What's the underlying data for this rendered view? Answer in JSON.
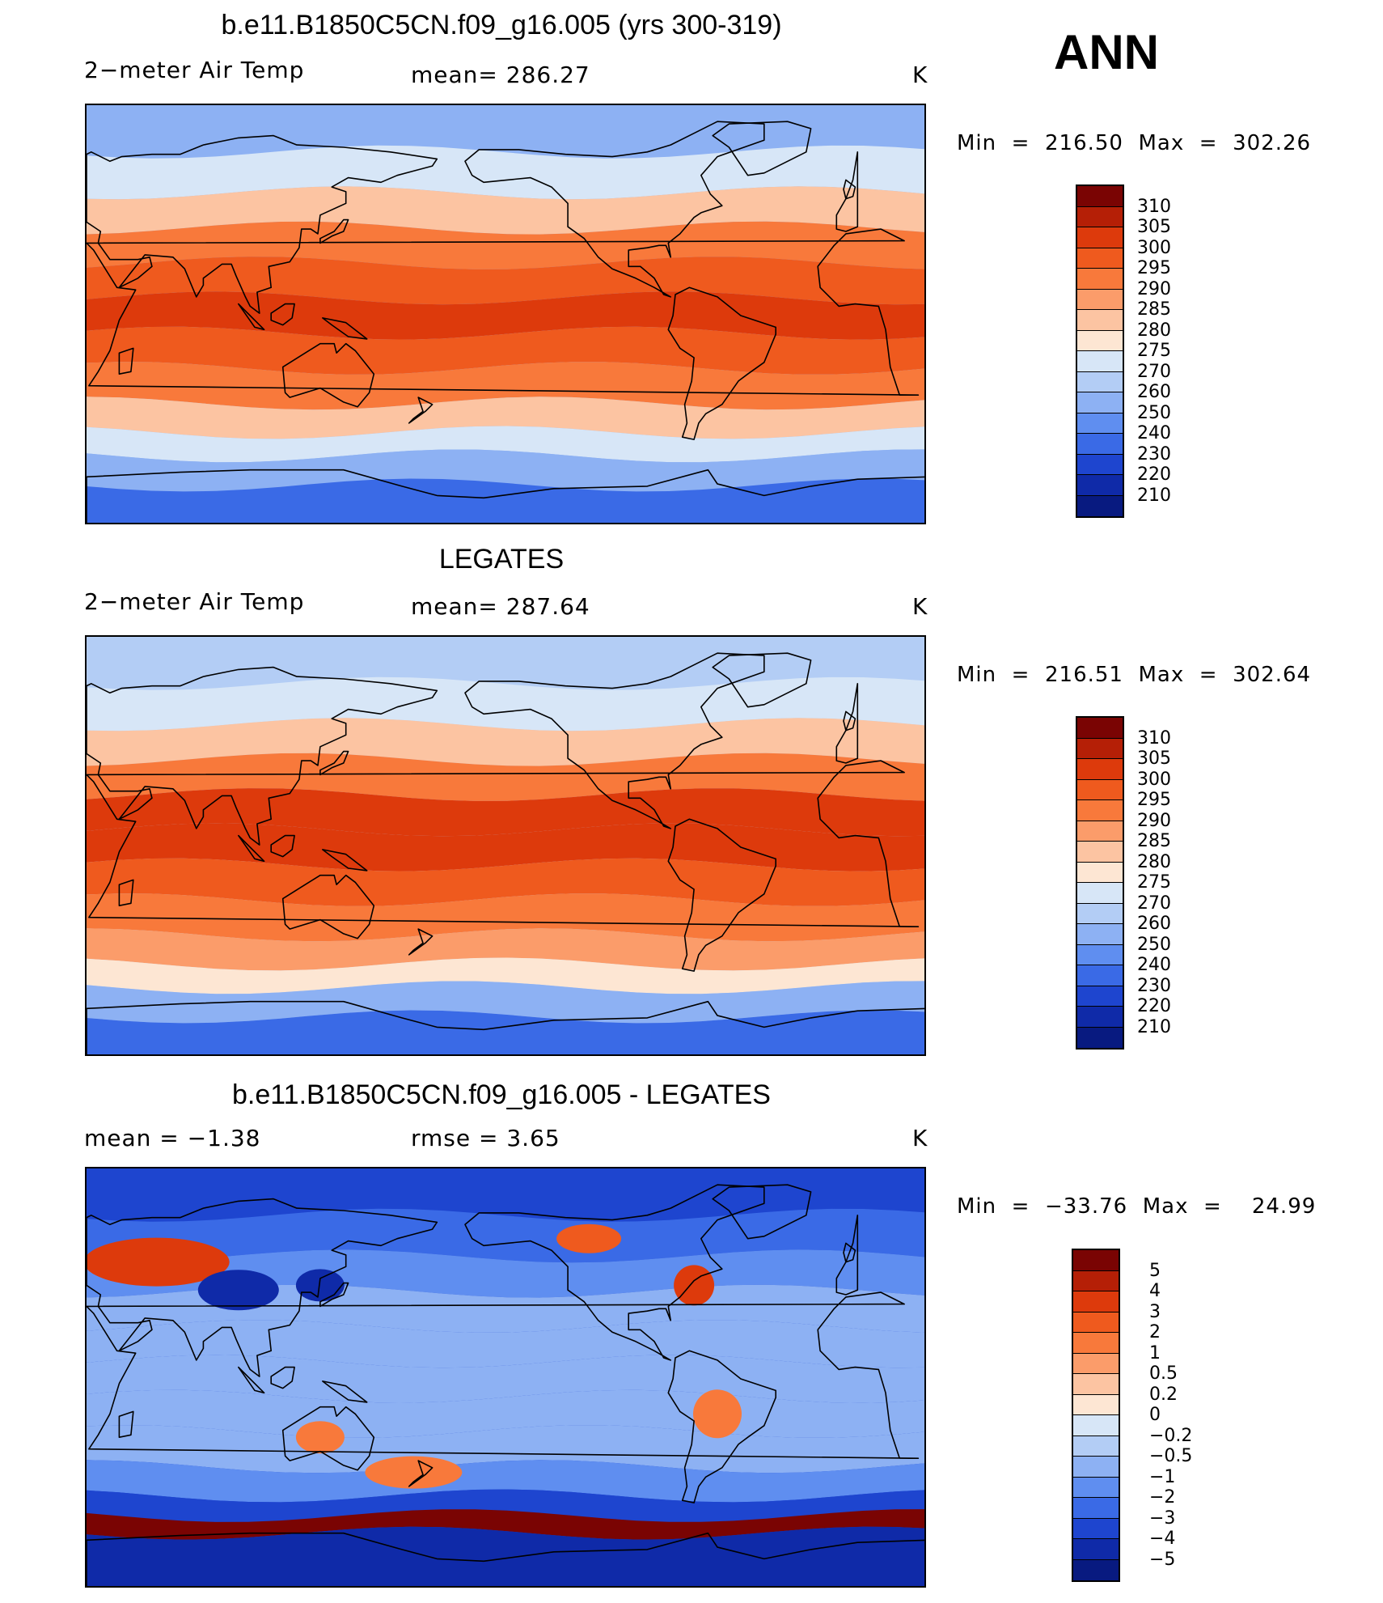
{
  "season": "ANN",
  "panels": [
    {
      "title": "b.e11.B1850C5CN.f09_g16.005 (yrs 300-319)",
      "left_label": "2−meter Air Temp",
      "center_label": "mean=  286.27",
      "units": "K",
      "minmax": "Min  =  216.50  Max  =  302.26"
    },
    {
      "title": "LEGATES",
      "left_label": "2−meter Air Temp",
      "center_label": "mean=  287.64",
      "units": "K",
      "minmax": "Min  =  216.51  Max  =  302.64"
    },
    {
      "title": "b.e11.B1850C5CN.f09_g16.005 - LEGATES",
      "left_label": "mean  =    −1.38",
      "center_label": "rmse  =     3.65",
      "units": "K",
      "minmax": "Min  =  −33.76  Max  =    24.99"
    }
  ],
  "colorbars": {
    "abs_levels": [
      "310",
      "305",
      "300",
      "295",
      "290",
      "285",
      "280",
      "275",
      "270",
      "260",
      "250",
      "240",
      "230",
      "220",
      "210"
    ],
    "abs_colors": [
      "#7a0403",
      "#b51f06",
      "#dd3a0c",
      "#ef5a1e",
      "#f8793b",
      "#fb9c6a",
      "#fcc4a2",
      "#fde6d3",
      "#d7e6f7",
      "#b3cdf5",
      "#8db1f3",
      "#5f8ef0",
      "#3a6ae6",
      "#1e45cf",
      "#0f2aa8",
      "#081a80"
    ],
    "diff_levels": [
      "5",
      "4",
      "3",
      "2",
      "1",
      "0.5",
      "0.2",
      "0",
      "−0.2",
      "−0.5",
      "−1",
      "−2",
      "−3",
      "−4",
      "−5"
    ],
    "diff_colors": [
      "#7a0403",
      "#b51f06",
      "#dd3a0c",
      "#ef5a1e",
      "#f8793b",
      "#fb9c6a",
      "#fcc4a2",
      "#fde6d3",
      "#d7e6f7",
      "#b3cdf5",
      "#8db1f3",
      "#5f8ef0",
      "#3a6ae6",
      "#1e45cf",
      "#0f2aa8",
      "#081a80"
    ]
  },
  "chart_data": [
    {
      "type": "heatmap",
      "title": "b.e11.B1850C5CN.f09_g16.005 (yrs 300-319)",
      "variable": "2−meter Air Temp",
      "units": "K",
      "mean": 286.27,
      "min": 216.5,
      "max": 302.26,
      "contour_levels": [
        210,
        220,
        230,
        240,
        250,
        260,
        270,
        275,
        280,
        285,
        290,
        295,
        300,
        305,
        310
      ],
      "zonal_bands": [
        {
          "lat": 80,
          "level": 250
        },
        {
          "lat": 60,
          "level": 270
        },
        {
          "lat": 45,
          "level": 280
        },
        {
          "lat": 30,
          "level": 290
        },
        {
          "lat": 15,
          "level": 295
        },
        {
          "lat": 0,
          "level": 300
        },
        {
          "lat": -15,
          "level": 295
        },
        {
          "lat": -30,
          "level": 290
        },
        {
          "lat": -45,
          "level": 280
        },
        {
          "lat": -55,
          "level": 270
        },
        {
          "lat": -65,
          "level": 250
        },
        {
          "lat": -80,
          "level": 230
        }
      ]
    },
    {
      "type": "heatmap",
      "title": "LEGATES",
      "variable": "2−meter Air Temp",
      "units": "K",
      "mean": 287.64,
      "min": 216.51,
      "max": 302.64,
      "contour_levels": [
        210,
        220,
        230,
        240,
        250,
        260,
        270,
        275,
        280,
        285,
        290,
        295,
        300,
        305,
        310
      ],
      "zonal_bands": [
        {
          "lat": 80,
          "level": 260
        },
        {
          "lat": 60,
          "level": 270
        },
        {
          "lat": 45,
          "level": 280
        },
        {
          "lat": 30,
          "level": 290
        },
        {
          "lat": 15,
          "level": 300
        },
        {
          "lat": 0,
          "level": 300
        },
        {
          "lat": -15,
          "level": 295
        },
        {
          "lat": -30,
          "level": 290
        },
        {
          "lat": -45,
          "level": 285
        },
        {
          "lat": -55,
          "level": 275
        },
        {
          "lat": -65,
          "level": 250
        },
        {
          "lat": -80,
          "level": 230
        }
      ]
    },
    {
      "type": "heatmap",
      "title": "b.e11.B1850C5CN.f09_g16.005 - LEGATES",
      "units": "K",
      "mean": -1.38,
      "rmse": 3.65,
      "min": -33.76,
      "max": 24.99,
      "contour_levels": [
        -5,
        -4,
        -3,
        -2,
        -1,
        -0.5,
        -0.2,
        0,
        0.2,
        0.5,
        1,
        2,
        3,
        4,
        5
      ],
      "zonal_bands": [
        {
          "lat": 80,
          "level": -4
        },
        {
          "lat": 60,
          "level": -3
        },
        {
          "lat": 45,
          "level": -2
        },
        {
          "lat": 30,
          "level": -1
        },
        {
          "lat": 15,
          "level": -1
        },
        {
          "lat": 0,
          "level": -1
        },
        {
          "lat": -15,
          "level": -1
        },
        {
          "lat": -30,
          "level": -1
        },
        {
          "lat": -45,
          "level": -2
        },
        {
          "lat": -55,
          "level": -4
        },
        {
          "lat": -62,
          "level": 5
        },
        {
          "lat": -70,
          "level": -5
        }
      ]
    }
  ]
}
